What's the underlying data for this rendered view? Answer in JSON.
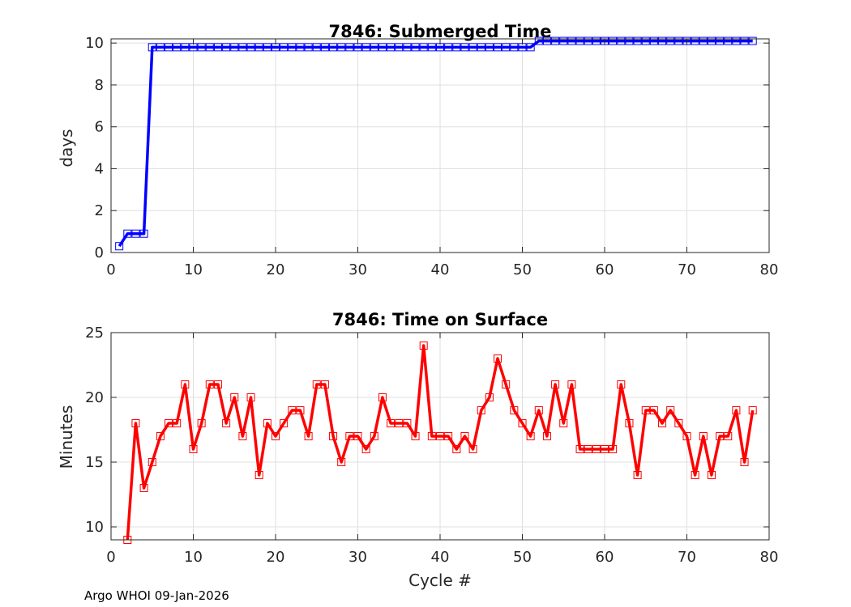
{
  "footer": "Argo WHOI 09-Jan-2026",
  "chart_data": [
    {
      "type": "line",
      "title": "7846: Submerged Time",
      "xlabel": "",
      "ylabel": "days",
      "xlim": [
        0,
        80
      ],
      "ylim": [
        0,
        10.2
      ],
      "xticks": [
        0,
        10,
        20,
        30,
        40,
        50,
        60,
        70,
        80
      ],
      "yticks": [
        0,
        2,
        4,
        6,
        8,
        10
      ],
      "grid": true,
      "marker": "square",
      "series": [
        {
          "color": "#0000ff",
          "x": [
            1,
            2,
            3,
            4,
            5,
            6,
            7,
            8,
            9,
            10,
            11,
            12,
            13,
            14,
            15,
            16,
            17,
            18,
            19,
            20,
            21,
            22,
            23,
            24,
            25,
            26,
            27,
            28,
            29,
            30,
            31,
            32,
            33,
            34,
            35,
            36,
            37,
            38,
            39,
            40,
            41,
            42,
            43,
            44,
            45,
            46,
            47,
            48,
            49,
            50,
            51,
            52,
            53,
            54,
            55,
            56,
            57,
            58,
            59,
            60,
            61,
            62,
            63,
            64,
            65,
            66,
            67,
            68,
            69,
            70,
            71,
            72,
            73,
            74,
            75,
            76,
            77,
            78
          ],
          "y": [
            0.3,
            0.9,
            0.9,
            0.9,
            9.8,
            9.8,
            9.8,
            9.8,
            9.8,
            9.8,
            9.8,
            9.8,
            9.8,
            9.8,
            9.8,
            9.8,
            9.8,
            9.8,
            9.8,
            9.8,
            9.8,
            9.8,
            9.8,
            9.8,
            9.8,
            9.8,
            9.8,
            9.8,
            9.8,
            9.8,
            9.8,
            9.8,
            9.8,
            9.8,
            9.8,
            9.8,
            9.8,
            9.8,
            9.8,
            9.8,
            9.8,
            9.8,
            9.8,
            9.8,
            9.8,
            9.8,
            9.8,
            9.8,
            9.8,
            9.8,
            9.8,
            10.1,
            10.1,
            10.1,
            10.1,
            10.1,
            10.1,
            10.1,
            10.1,
            10.1,
            10.1,
            10.1,
            10.1,
            10.1,
            10.1,
            10.1,
            10.1,
            10.1,
            10.1,
            10.1,
            10.1,
            10.1,
            10.1,
            10.1,
            10.1,
            10.1,
            10.1,
            10.1
          ]
        }
      ]
    },
    {
      "type": "line",
      "title": "7846: Time on Surface",
      "xlabel": "Cycle #",
      "ylabel": "Minutes",
      "xlim": [
        0,
        80
      ],
      "ylim": [
        9,
        25
      ],
      "xticks": [
        0,
        10,
        20,
        30,
        40,
        50,
        60,
        70,
        80
      ],
      "yticks": [
        10,
        15,
        20,
        25
      ],
      "grid": true,
      "marker": "square",
      "series": [
        {
          "color": "#ff0000",
          "x": [
            2,
            3,
            4,
            5,
            6,
            7,
            8,
            9,
            10,
            11,
            12,
            13,
            14,
            15,
            16,
            17,
            18,
            19,
            20,
            21,
            22,
            23,
            24,
            25,
            26,
            27,
            28,
            29,
            30,
            31,
            32,
            33,
            34,
            35,
            36,
            37,
            38,
            39,
            40,
            41,
            42,
            43,
            44,
            45,
            46,
            47,
            48,
            49,
            50,
            51,
            52,
            53,
            54,
            55,
            56,
            57,
            58,
            59,
            60,
            61,
            62,
            63,
            64,
            65,
            66,
            67,
            68,
            69,
            70,
            71,
            72,
            73,
            74,
            75,
            76,
            77,
            78
          ],
          "y": [
            9,
            18,
            13,
            15,
            17,
            18,
            18,
            21,
            16,
            18,
            21,
            21,
            18,
            20,
            17,
            20,
            14,
            18,
            17,
            18,
            19,
            19,
            17,
            21,
            21,
            17,
            15,
            17,
            17,
            16,
            17,
            20,
            18,
            18,
            18,
            17,
            24,
            17,
            17,
            17,
            16,
            17,
            16,
            19,
            20,
            23,
            21,
            19,
            18,
            17,
            19,
            17,
            21,
            18,
            21,
            16,
            16,
            16,
            16,
            16,
            21,
            18,
            14,
            19,
            19,
            18,
            19,
            18,
            17,
            14,
            17,
            14,
            17,
            17,
            19,
            15,
            19
          ]
        }
      ]
    }
  ]
}
